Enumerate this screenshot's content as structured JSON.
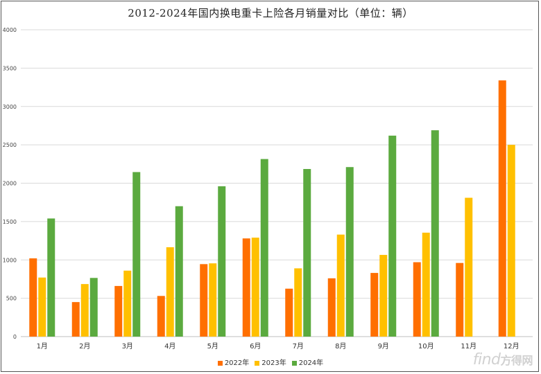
{
  "chart_data": {
    "type": "bar",
    "title": "2012-2024年国内换电重卡上险各月销量对比（单位：辆）",
    "categories": [
      "1月",
      "2月",
      "3月",
      "4月",
      "5月",
      "6月",
      "7月",
      "8月",
      "9月",
      "10月",
      "11月",
      "12月"
    ],
    "series": [
      {
        "name": "2022年",
        "color": "#FF6F00",
        "values": [
          1020,
          450,
          660,
          530,
          945,
          1280,
          625,
          760,
          830,
          970,
          960,
          3340
        ]
      },
      {
        "name": "2023年",
        "color": "#FFC000",
        "values": [
          770,
          685,
          860,
          1165,
          955,
          1290,
          890,
          1330,
          1065,
          1355,
          1810,
          2500
        ]
      },
      {
        "name": "2024年",
        "color": "#5BAA3F",
        "values": [
          1540,
          765,
          2145,
          1700,
          1960,
          2315,
          2185,
          2210,
          2620,
          2690,
          null,
          null
        ]
      }
    ],
    "ylim": [
      0,
      4000
    ],
    "yticks": [
      0,
      500,
      1000,
      1500,
      2000,
      2500,
      3000,
      3500,
      4000
    ],
    "grid": true,
    "legend": "bottom"
  },
  "watermark": {
    "latin": "find",
    "cjk": "方得网"
  }
}
